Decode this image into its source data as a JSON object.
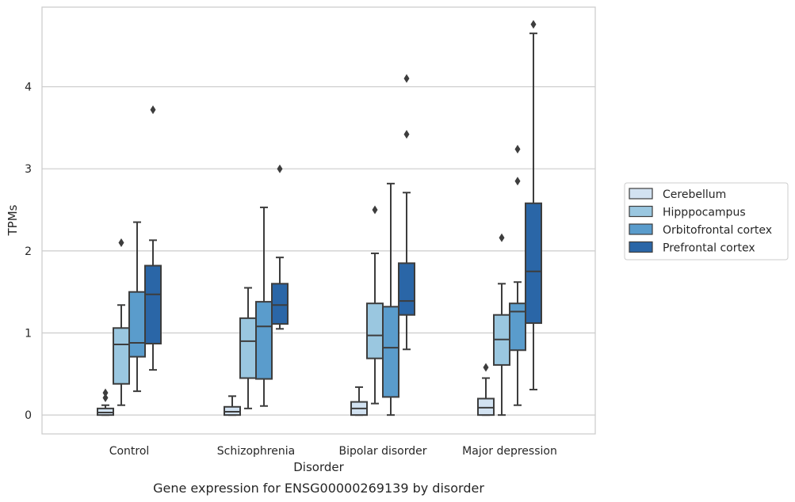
{
  "chart_data": {
    "type": "box",
    "caption": "Gene expression for ENSG00000269139 by disorder",
    "xlabel": "Disorder",
    "ylabel": "TPMs",
    "ylim": [
      -0.23,
      4.97
    ],
    "yticks": [
      0,
      1,
      2,
      3,
      4
    ],
    "grid": "y",
    "legend_position": "right",
    "categories": [
      "Control",
      "Schizophrenia",
      "Bipolar disorder",
      "Major depression"
    ],
    "series": [
      {
        "name": "Cerebellum",
        "color": "#d2e2f1",
        "boxes": [
          {
            "whislo": 0.0,
            "q1": 0.0,
            "med": 0.03,
            "q3": 0.08,
            "whishi": 0.12,
            "fliers": [
              0.21,
              0.27
            ]
          },
          {
            "whislo": 0.0,
            "q1": 0.0,
            "med": 0.04,
            "q3": 0.1,
            "whishi": 0.23,
            "fliers": []
          },
          {
            "whislo": 0.0,
            "q1": 0.0,
            "med": 0.08,
            "q3": 0.16,
            "whishi": 0.34,
            "fliers": []
          },
          {
            "whislo": 0.0,
            "q1": 0.0,
            "med": 0.09,
            "q3": 0.2,
            "whishi": 0.45,
            "fliers": [
              0.58
            ]
          }
        ]
      },
      {
        "name": "Hipppocampus",
        "color": "#9ac7e0",
        "boxes": [
          {
            "whislo": 0.12,
            "q1": 0.38,
            "med": 0.86,
            "q3": 1.06,
            "whishi": 1.34,
            "fliers": [
              2.1
            ]
          },
          {
            "whislo": 0.08,
            "q1": 0.45,
            "med": 0.9,
            "q3": 1.18,
            "whishi": 1.55,
            "fliers": []
          },
          {
            "whislo": 0.14,
            "q1": 0.69,
            "med": 0.97,
            "q3": 1.36,
            "whishi": 1.97,
            "fliers": [
              2.5
            ]
          },
          {
            "whislo": 0.0,
            "q1": 0.61,
            "med": 0.92,
            "q3": 1.22,
            "whishi": 1.6,
            "fliers": [
              2.16
            ]
          }
        ]
      },
      {
        "name": "Orbitofrontal cortex",
        "color": "#5a9ccc",
        "boxes": [
          {
            "whislo": 0.29,
            "q1": 0.71,
            "med": 0.88,
            "q3": 1.5,
            "whishi": 2.35,
            "fliers": []
          },
          {
            "whislo": 0.11,
            "q1": 0.44,
            "med": 1.08,
            "q3": 1.38,
            "whishi": 2.53,
            "fliers": []
          },
          {
            "whislo": 0.0,
            "q1": 0.22,
            "med": 0.82,
            "q3": 1.32,
            "whishi": 2.82,
            "fliers": []
          },
          {
            "whislo": 0.12,
            "q1": 0.79,
            "med": 1.26,
            "q3": 1.36,
            "whishi": 1.62,
            "fliers": [
              2.85,
              3.24
            ]
          }
        ]
      },
      {
        "name": "Prefrontal cortex",
        "color": "#2a66a7",
        "boxes": [
          {
            "whislo": 0.55,
            "q1": 0.87,
            "med": 1.47,
            "q3": 1.82,
            "whishi": 2.13,
            "fliers": [
              3.72
            ]
          },
          {
            "whislo": 1.05,
            "q1": 1.11,
            "med": 1.34,
            "q3": 1.6,
            "whishi": 1.92,
            "fliers": [
              3.0
            ]
          },
          {
            "whislo": 0.8,
            "q1": 1.22,
            "med": 1.39,
            "q3": 1.85,
            "whishi": 2.71,
            "fliers": [
              3.42,
              4.1
            ]
          },
          {
            "whislo": 0.31,
            "q1": 1.12,
            "med": 1.75,
            "q3": 2.58,
            "whishi": 4.65,
            "fliers": [
              4.76
            ]
          }
        ]
      }
    ]
  }
}
